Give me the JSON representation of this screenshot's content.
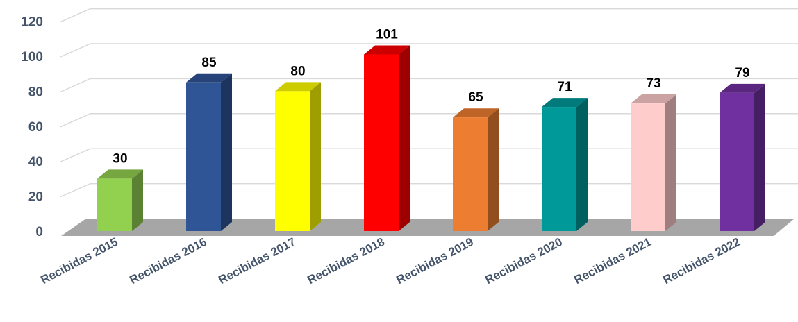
{
  "chart_data": {
    "type": "bar",
    "style": "3d-column",
    "title": "",
    "xlabel": "",
    "ylabel": "",
    "categories": [
      "Recibidas 2015",
      "Recibidas 2016",
      "Recibidas 2017",
      "Recibidas 2018",
      "Recibidas 2019",
      "Recibidas 2020",
      "Recibidas 2021",
      "Recibidas 2022"
    ],
    "values": [
      30,
      85,
      80,
      101,
      65,
      71,
      73,
      79
    ],
    "colors": [
      "#92d050",
      "#2f5597",
      "#ffff00",
      "#ff0000",
      "#ed7d31",
      "#009999",
      "#ffcccc",
      "#7030a0"
    ],
    "ylim": [
      0,
      120
    ],
    "yticks": [
      0,
      20,
      40,
      60,
      80,
      100,
      120
    ],
    "grid": true,
    "legend": "none",
    "data_labels": true
  }
}
